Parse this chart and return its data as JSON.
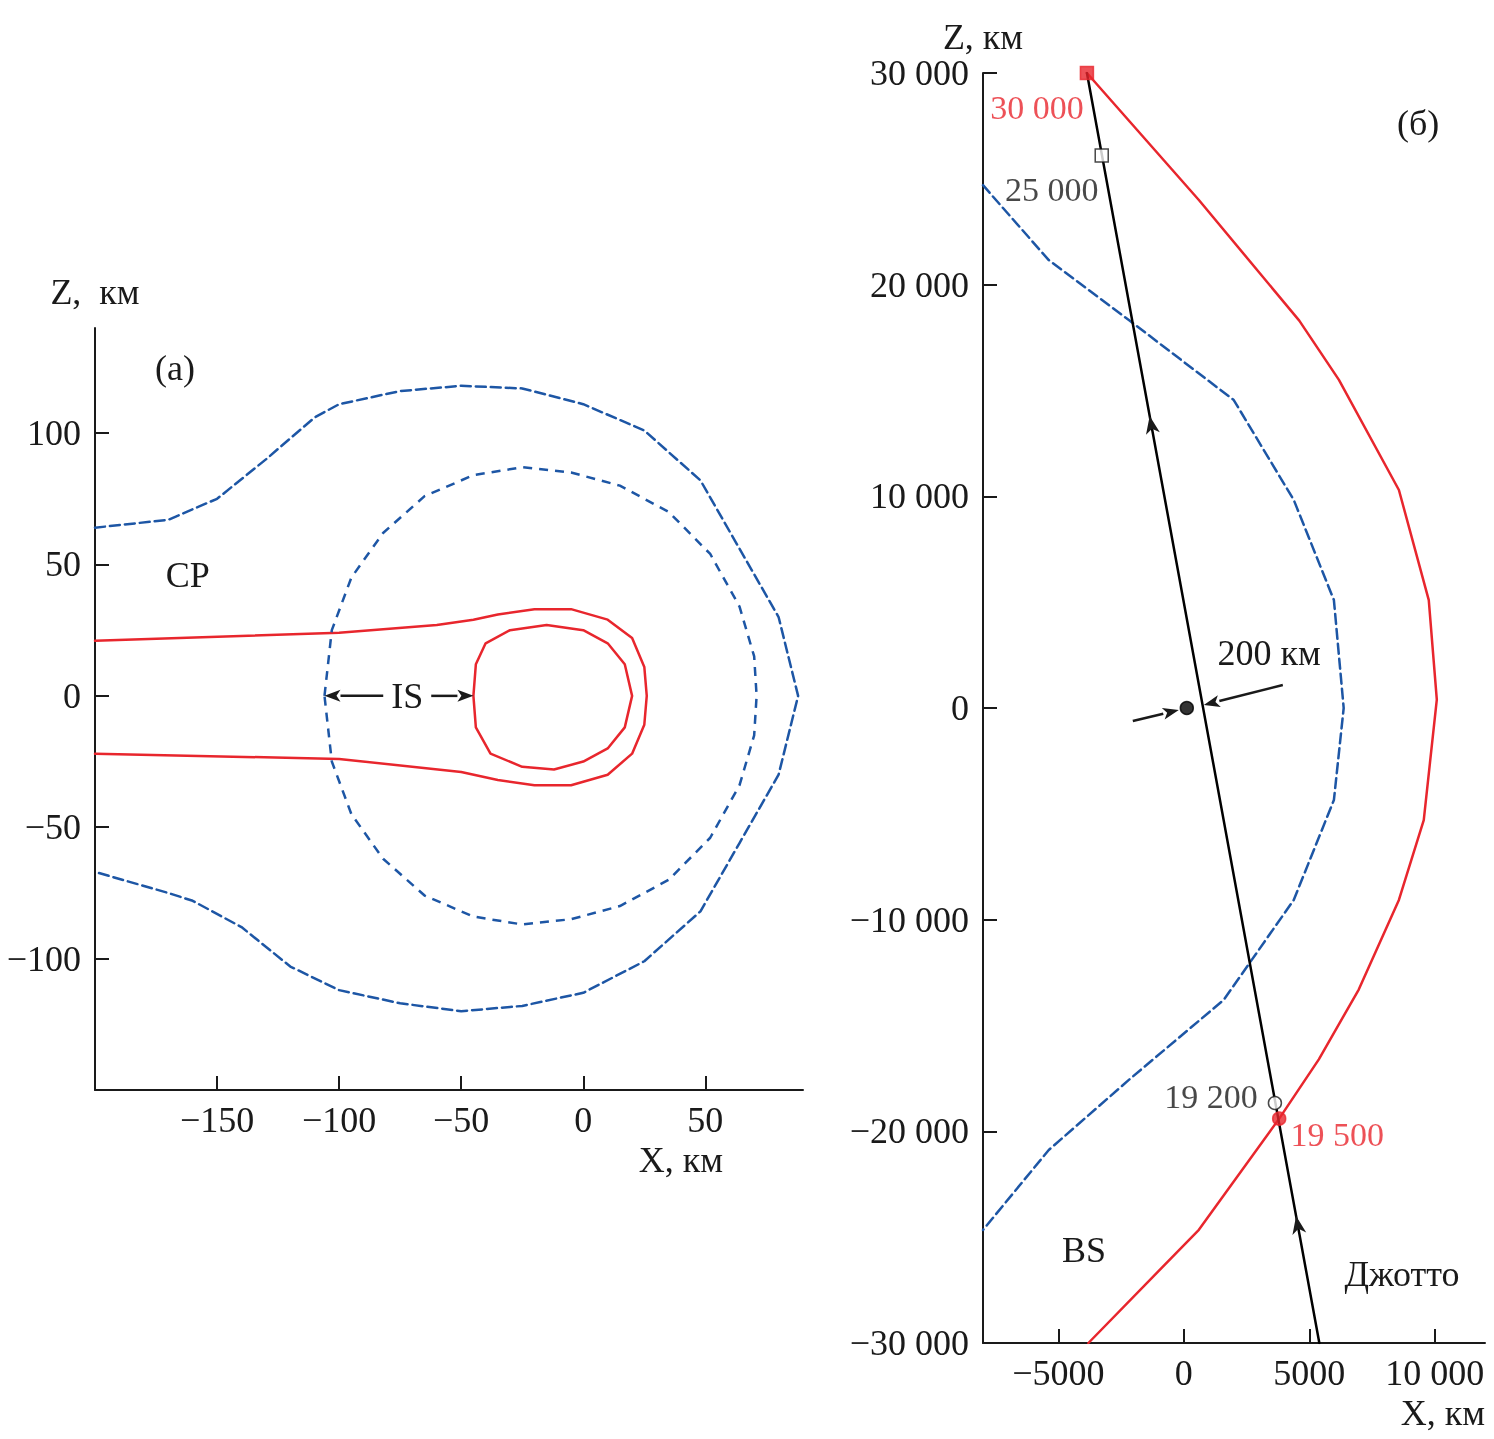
{
  "chart_data": [
    {
      "type": "line",
      "title": "(а)",
      "xlabel": "X, км",
      "ylabel": "Z,  км",
      "xlim": [
        -200,
        90
      ],
      "ylim": [
        -150,
        140
      ],
      "xticks": [
        {
          "value": -150,
          "label": "−150"
        },
        {
          "value": -100,
          "label": "−100"
        },
        {
          "value": -50,
          "label": "−50"
        },
        0,
        50
      ],
      "yticks": [
        {
          "value": -100,
          "label": "−100"
        },
        {
          "value": -50,
          "label": "−50"
        },
        0,
        50,
        100
      ],
      "series": [
        {
          "color": "#1d56a5",
          "line_style": "dashed",
          "x": [
            -200,
            -170,
            -150,
            -130,
            -110,
            -100,
            -75,
            -50,
            -25,
            0,
            25,
            48,
            64,
            80,
            88,
            80,
            64,
            48,
            25,
            0,
            -25,
            -50,
            -75,
            -100,
            -120,
            -140,
            -160,
            -170,
            -200
          ],
          "values": [
            64,
            67,
            75,
            90,
            106,
            111,
            116,
            118,
            117,
            111,
            101,
            82,
            56,
            30,
            0,
            -30,
            -56,
            -82,
            -101,
            -113,
            -118,
            -120,
            -117,
            -112,
            -103,
            -88,
            -78,
            -75,
            -67
          ]
        },
        {
          "color": "#e8262d",
          "x": [
            -200,
            -100,
            -60,
            -45,
            -35,
            -20,
            -5,
            10,
            20,
            25,
            26,
            25,
            20,
            10,
            -5,
            -20,
            -35,
            -50,
            -100,
            -200
          ],
          "values": [
            21,
            24,
            27,
            29,
            31,
            33,
            33,
            29,
            22,
            11,
            0,
            -11,
            -22,
            -30,
            -34,
            -34,
            -32,
            -29,
            -24,
            -22
          ]
        }
      ],
      "annotations": [
        "СР",
        "IS"
      ]
    },
    {
      "type": "line",
      "title": "(б)",
      "xlabel": "X, км",
      "ylabel": "Z, км",
      "xlim": [
        -8000,
        12000
      ],
      "ylim": [
        -30000,
        30000
      ],
      "xticks": [
        {
          "value": -5000,
          "label": "−5000"
        },
        0,
        5000,
        {
          "value": 10000,
          "label": "10 000"
        }
      ],
      "yticks": [
        {
          "value": -30000,
          "label": "−30 000"
        },
        {
          "value": -20000,
          "label": "−20 000"
        },
        {
          "value": -10000,
          "label": "−10 000"
        },
        0,
        {
          "value": 10000,
          "label": "10 000"
        },
        {
          "value": 20000,
          "label": "20 000"
        },
        {
          "value": 30000,
          "label": "30 000"
        }
      ],
      "series": [
        {
          "color": "#e8262d",
          "x": [
            -3860,
            600,
            4600,
            6180,
            8570,
            9760,
            10080,
            9560,
            8570,
            6970,
            5380,
            3800,
            600,
            -3800
          ],
          "values": [
            30000,
            24000,
            18300,
            15500,
            10300,
            5100,
            400,
            -5300,
            -9070,
            -13300,
            -16600,
            -19400,
            -24650,
            -30000
          ]
        },
        {
          "color": "#1d56a5",
          "line_style": "dashed",
          "x": [
            -8000,
            -5380,
            -2190,
            1990,
            4380,
            5980,
            6370,
            5980,
            4380,
            1590,
            -2190,
            -5380,
            -8000
          ],
          "values": [
            24700,
            21160,
            18330,
            14550,
            9830,
            5100,
            0,
            -4350,
            -9070,
            -13790,
            -17570,
            -20880,
            -24660
          ]
        },
        {
          "color": "#000000",
          "x": [
            5400,
            -3860
          ],
          "values": [
            -30000,
            30000
          ]
        },
        {
          "type": "scatter",
          "name": "25 000",
          "marker": "square",
          "color": "#ffffff",
          "x": [
            -3270
          ],
          "values": [
            26100
          ]
        },
        {
          "type": "scatter",
          "name": "30 000",
          "marker": "square",
          "color": "#e8262d",
          "x": [
            -3860
          ],
          "values": [
            30000
          ]
        },
        {
          "type": "scatter",
          "marker": "circle",
          "color": "#000000",
          "x": [
            120
          ],
          "values": [
            0
          ]
        },
        {
          "type": "scatter",
          "name": "19 200",
          "marker": "circle",
          "color": "#ffffff",
          "x": [
            3630
          ],
          "values": [
            -18660
          ]
        },
        {
          "type": "scatter",
          "name": "19 500",
          "marker": "circle",
          "color": "#e8262d",
          "x": [
            3800
          ],
          "values": [
            -19400
          ]
        }
      ],
      "annotations": [
        "200 км",
        "BS",
        "Джотто"
      ]
    }
  ]
}
